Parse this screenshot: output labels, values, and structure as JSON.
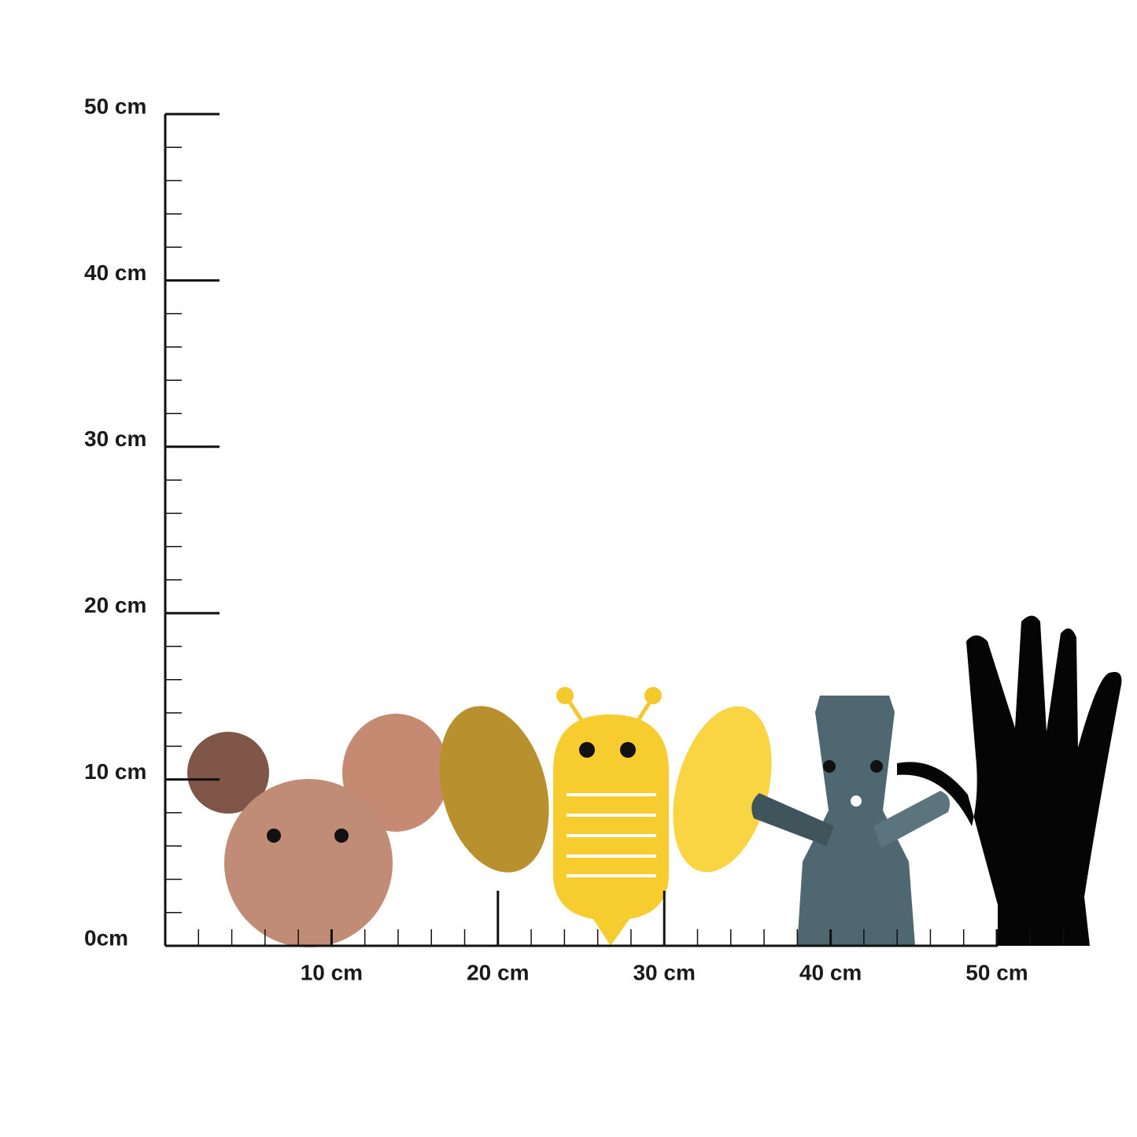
{
  "y_axis": {
    "labels": [
      "50 cm",
      "40 cm",
      "30 cm",
      "20 cm",
      "10 cm",
      "0cm"
    ]
  },
  "x_axis": {
    "labels": [
      "10 cm",
      "20 cm",
      "30 cm",
      "40 cm",
      "50 cm"
    ]
  }
}
